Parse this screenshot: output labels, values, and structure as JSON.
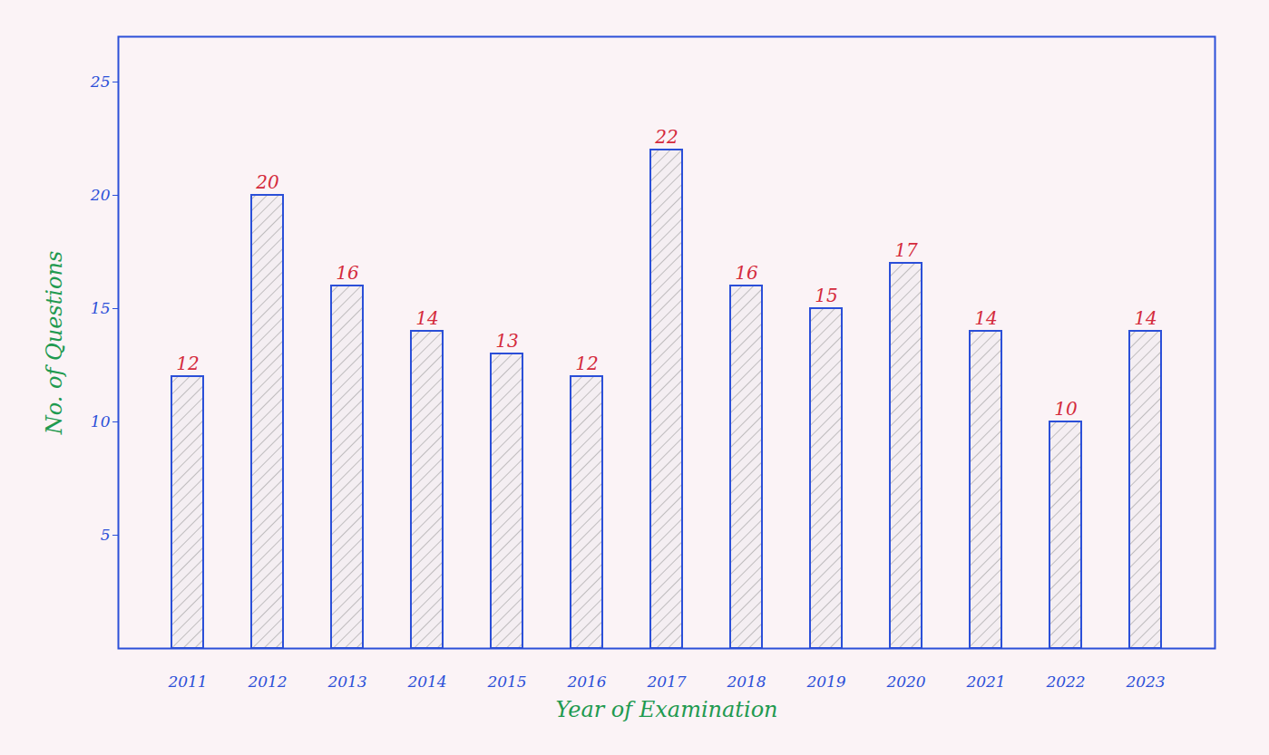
{
  "chart_data": {
    "type": "bar",
    "x_label": "Year of Examination",
    "y_label": "No. of Questions",
    "categories": [
      "2011",
      "2012",
      "2013",
      "2014",
      "2015",
      "2016",
      "2017",
      "2018",
      "2019",
      "2020",
      "2021",
      "2022",
      "2023"
    ],
    "values": [
      12,
      20,
      16,
      14,
      13,
      12,
      22,
      16,
      15,
      17,
      14,
      10,
      14
    ],
    "color": "#2b4fd8",
    "ylim": [
      0,
      27
    ],
    "yticks": [
      5,
      10,
      15,
      20,
      25
    ],
    "grid": false,
    "data_labels": true
  }
}
